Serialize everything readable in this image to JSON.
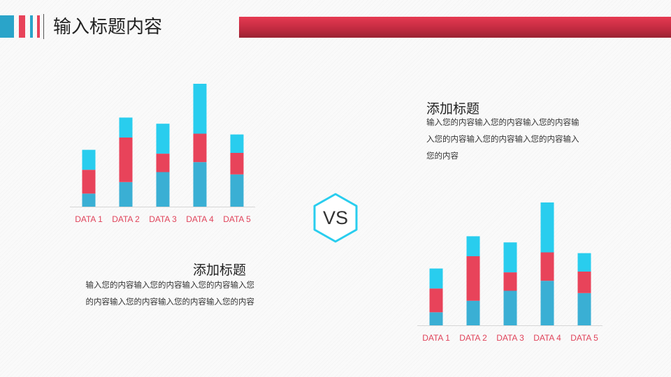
{
  "header": {
    "title": "输入标题内容",
    "colors": {
      "blue": "#2aa4c9",
      "red": "#e8435a",
      "band": "#d0304a"
    }
  },
  "vs_label": "VS",
  "colors": {
    "bottom": "#3aafd4",
    "middle": "#e8435a",
    "top": "#29cdee"
  },
  "text_blocks": [
    {
      "title": "添加标题",
      "body": "输入您的内容输入您的内容输入您的内容输入您的内容输入您的内容输入您的内容输入您的内容"
    },
    {
      "title": "添加标题",
      "body": "输入您的内容输入您的内容输入您的内容输入您的内容输入您的内容输入您的内容输入您的内容"
    }
  ],
  "chart_data": [
    {
      "type": "bar",
      "stacked": true,
      "categories": [
        "DATA 1",
        "DATA 2",
        "DATA 3",
        "DATA 4",
        "DATA 5"
      ],
      "series": [
        {
          "values": [
            17,
            32,
            45,
            58,
            42
          ]
        },
        {
          "values": [
            31,
            58,
            24,
            37,
            28
          ]
        },
        {
          "values": [
            26,
            26,
            39,
            65,
            24
          ]
        }
      ],
      "ylim": [
        0,
        160
      ]
    },
    {
      "type": "bar",
      "stacked": true,
      "categories": [
        "DATA 1",
        "DATA 2",
        "DATA 3",
        "DATA 4",
        "DATA 5"
      ],
      "series": [
        {
          "values": [
            17,
            32,
            45,
            58,
            42
          ]
        },
        {
          "values": [
            31,
            58,
            24,
            37,
            28
          ]
        },
        {
          "values": [
            26,
            26,
            39,
            65,
            24
          ]
        }
      ],
      "ylim": [
        0,
        160
      ]
    }
  ]
}
